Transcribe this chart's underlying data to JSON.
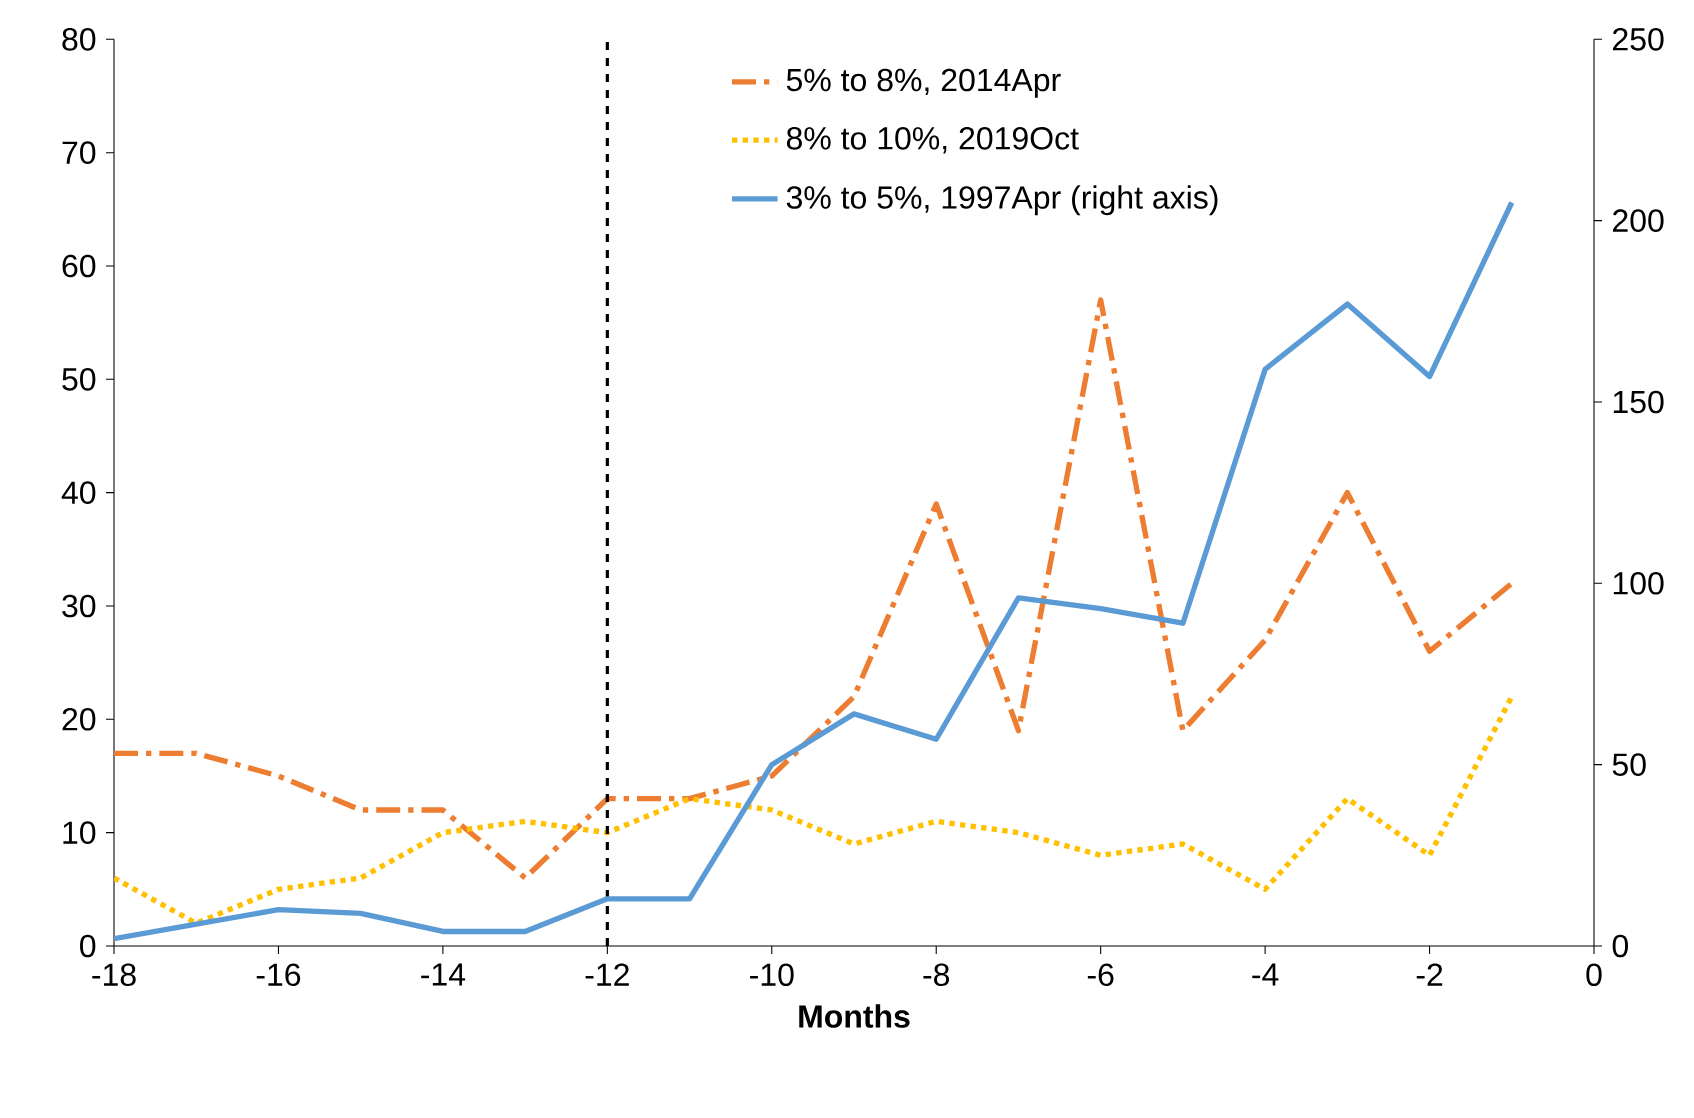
{
  "chart_data": {
    "type": "line",
    "xlabel": "Months",
    "x": [
      -18,
      -17,
      -16,
      -15,
      -14,
      -13,
      -12,
      -11,
      -10,
      -9,
      -8,
      -7,
      -6,
      -5,
      -4,
      -3,
      -2,
      -1
    ],
    "series": [
      {
        "name": "5% to 8%, 2014Apr",
        "color": "#ed7d31",
        "line_style": "dashdot",
        "values": [
          17,
          17,
          15,
          12,
          12,
          6,
          13,
          13,
          15,
          22,
          39,
          19,
          57,
          19,
          27,
          40,
          26,
          32
        ]
      },
      {
        "name": "8% to 10%, 2019Oct",
        "color": "#ffc000",
        "line_style": "dotted",
        "values": [
          6,
          2,
          5,
          6,
          10,
          11,
          10,
          13,
          12,
          9,
          11,
          10,
          8,
          9,
          5,
          13,
          8,
          22
        ]
      },
      {
        "name": "3% to 5%, 1997Apr (right axis)",
        "color": "#5b9bd5",
        "line_style": "solid",
        "axis": "y2",
        "values": [
          2,
          6,
          10,
          9,
          4,
          4,
          13,
          13,
          50,
          64,
          57,
          96,
          93,
          89,
          159,
          177,
          157,
          205
        ]
      }
    ],
    "xlim": [
      -18,
      0
    ],
    "xticks": [
      -18,
      -16,
      -14,
      -12,
      -10,
      -8,
      -6,
      -4,
      -2,
      0
    ],
    "ylim": [
      0,
      80
    ],
    "yticks": [
      0,
      10,
      20,
      30,
      40,
      50,
      60,
      70,
      80
    ],
    "y2lim": [
      0,
      250
    ],
    "y2ticks": [
      0,
      50,
      100,
      150,
      200,
      250
    ],
    "ref_lines": [
      {
        "axis": "x",
        "value": -12,
        "color": "#000000",
        "line_style": "dashed"
      }
    ],
    "legend": "top",
    "grid": false,
    "marker": "none"
  }
}
